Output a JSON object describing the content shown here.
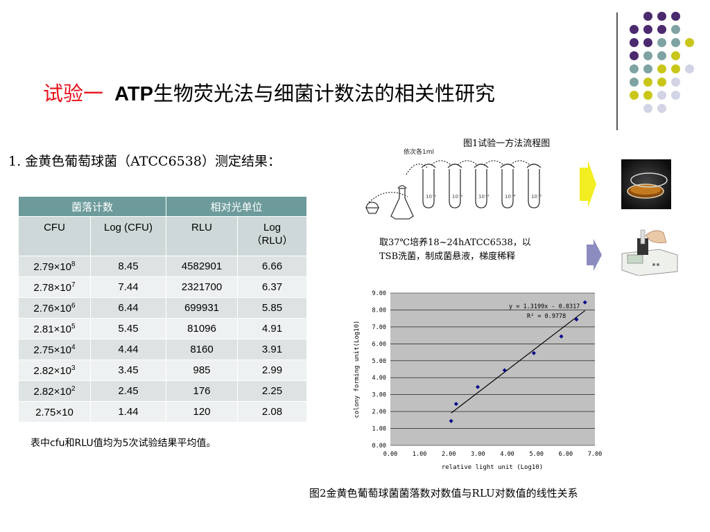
{
  "title": {
    "prefix": "试验一",
    "bold_part": "ATP",
    "rest": "生物荧光法与细菌计数法的相关性研究"
  },
  "subtitle": "1. 金黄色葡萄球菌（ATCC6538）测定结果：",
  "table": {
    "group_headers": [
      "菌落计数",
      "相对光单位"
    ],
    "sub_headers": [
      "CFU",
      "Log (CFU)",
      "RLU",
      "Log\n（RLU）"
    ],
    "rows": [
      {
        "cfu_base": "2.79×10",
        "cfu_exp": "8",
        "log_cfu": "8.45",
        "rlu": "4582901",
        "log_rlu": "6.66"
      },
      {
        "cfu_base": "2.78×10",
        "cfu_exp": "7",
        "log_cfu": "7.44",
        "rlu": "2321700",
        "log_rlu": "6.37"
      },
      {
        "cfu_base": "2.76×10",
        "cfu_exp": "6",
        "log_cfu": "6.44",
        "rlu": "699931",
        "log_rlu": "5.85"
      },
      {
        "cfu_base": "2.81×10",
        "cfu_exp": "5",
        "log_cfu": "5.45",
        "rlu": "81096",
        "log_rlu": "4.91"
      },
      {
        "cfu_base": "2.75×10",
        "cfu_exp": "4",
        "log_cfu": "4.44",
        "rlu": "8160",
        "log_rlu": "3.91"
      },
      {
        "cfu_base": "2.82×10",
        "cfu_exp": "3",
        "log_cfu": "3.45",
        "rlu": "985",
        "log_rlu": "2.99"
      },
      {
        "cfu_base": "2.82×10",
        "cfu_exp": "2",
        "log_cfu": "2.45",
        "rlu": "176",
        "log_rlu": "2.25"
      },
      {
        "cfu_base": "2.75×10",
        "cfu_exp": "",
        "log_cfu": "1.44",
        "rlu": "120",
        "log_rlu": "2.08"
      }
    ]
  },
  "note": "表中cfu和RLU值均为5次试验结果平均值。",
  "figure1": {
    "caption": "图1试验一方法流程图",
    "sketch_label": "依次各1ml",
    "description_line1": "取37℃培养18~24hATCC6538，以",
    "description_line2": "TSB洗菌，制成菌悬液，梯度稀释"
  },
  "figure2": {
    "caption": "图2金黄色葡萄球菌菌落数对数值与RLU对数值的线性关系"
  },
  "colors": {
    "accent_red": "#e8101a",
    "table_header": "#6d9b9b",
    "dot_purple": "#4b2a6e",
    "dot_teal": "#7fa3a3",
    "dot_yellow": "#c9c61a",
    "dot_lavender": "#d3d3e6",
    "arrow_yellow": "#f2ee22",
    "arrow_purple": "#8c8cc0",
    "plot_bg": "#c0c0c0",
    "point_color": "#00008b"
  },
  "icons": {
    "decor_dots": "dot-grid-decoration",
    "arrow1": "yellow-arrow-icon",
    "arrow2": "purple-arrow-icon",
    "photo1": "petri-dish-photo",
    "photo2": "luminometer-photo"
  },
  "chart_data": {
    "type": "scatter",
    "xlabel": "relative light unit (Log10)",
    "ylabel": "colony forming unit(Log10)",
    "xlim": [
      0,
      7
    ],
    "ylim": [
      0,
      9
    ],
    "xticks": [
      "0.00",
      "1.00",
      "2.00",
      "3.00",
      "4.00",
      "5.00",
      "6.00",
      "7.00"
    ],
    "yticks": [
      "0.00",
      "1.00",
      "2.00",
      "3.00",
      "4.00",
      "5.00",
      "6.00",
      "7.00",
      "8.00",
      "9.00"
    ],
    "points": [
      {
        "x": 6.66,
        "y": 8.45
      },
      {
        "x": 6.37,
        "y": 7.44
      },
      {
        "x": 5.85,
        "y": 6.44
      },
      {
        "x": 4.91,
        "y": 5.45
      },
      {
        "x": 3.91,
        "y": 4.44
      },
      {
        "x": 2.99,
        "y": 3.45
      },
      {
        "x": 2.25,
        "y": 2.45
      },
      {
        "x": 2.08,
        "y": 1.44
      }
    ],
    "trendline": {
      "slope": 1.3199,
      "intercept": -0.8317,
      "x_range": [
        2.08,
        6.66
      ]
    },
    "equation_text": "y = 1.3199x - 0.8317",
    "r2_text": "R² = 0.9778",
    "grid": "horizontal"
  }
}
